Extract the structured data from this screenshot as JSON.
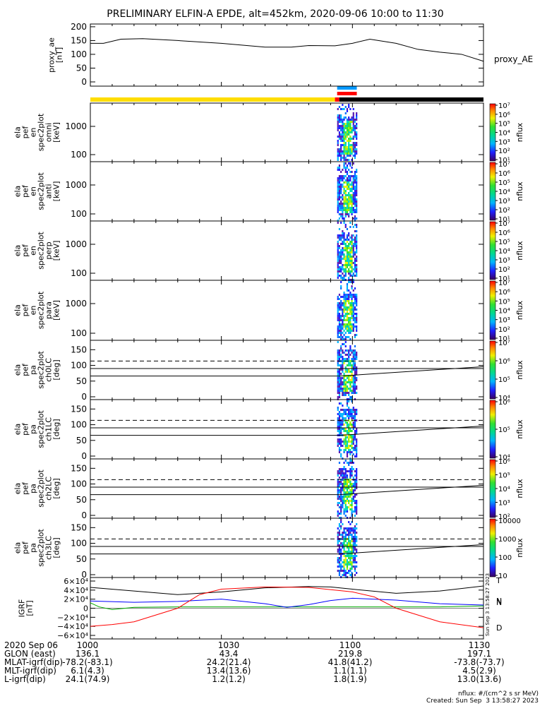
{
  "title": "PRELIMINARY ELFIN-A EPDE, alt=452km, 2020-09-06 10:00 to 11:30",
  "chart_data": [
    {
      "type": "line",
      "panel": "proxy_ae",
      "ylabel": "proxy_ae [nT]",
      "series_label": "proxy_AE",
      "y_ticks": [
        "0",
        "50",
        "100",
        "150",
        "200"
      ],
      "ylim": [
        0,
        210
      ],
      "x_min": [
        0,
        3,
        7,
        12,
        20,
        30,
        40,
        46,
        50,
        56,
        60,
        64,
        70,
        75,
        80,
        85,
        90
      ],
      "values": [
        140,
        140,
        155,
        157,
        150,
        140,
        126,
        126,
        132,
        131,
        140,
        155,
        140,
        118,
        108,
        100,
        75
      ]
    },
    {
      "type": "heatmap",
      "panel": "ela_pef_en_spec2plot_omni",
      "ylabel": "ela pef en spec2plot omni [keV]",
      "y_ticks": [
        "100",
        "1000"
      ],
      "colorbar_ticks": [
        "10¹",
        "10²",
        "10³",
        "10⁴",
        "10⁵",
        "10⁶",
        "10⁷"
      ],
      "colorbar_label": "nflux",
      "active_window_min": [
        57,
        61
      ]
    },
    {
      "type": "heatmap",
      "panel": "ela_pef_en_spec2plot_anti",
      "ylabel": "ela pef en spec2plot anti [keV]",
      "y_ticks": [
        "100",
        "1000"
      ],
      "colorbar_ticks": [
        "10¹",
        "10²",
        "10³",
        "10⁴",
        "10⁵",
        "10⁶",
        "10⁷"
      ],
      "colorbar_label": "nflux",
      "active_window_min": [
        57,
        61
      ]
    },
    {
      "type": "heatmap",
      "panel": "ela_pef_en_spec2plot_perp",
      "ylabel": "ela pef en spec2plot perp [keV]",
      "y_ticks": [
        "100",
        "1000"
      ],
      "colorbar_ticks": [
        "10¹",
        "10²",
        "10³",
        "10⁴",
        "10⁵",
        "10⁶",
        "10⁷"
      ],
      "colorbar_label": "nflux",
      "active_window_min": [
        57,
        61
      ]
    },
    {
      "type": "heatmap",
      "panel": "ela_pef_en_spec2plot_para",
      "ylabel": "ela pef en spec2plot para [keV]",
      "y_ticks": [
        "100",
        "1000"
      ],
      "colorbar_ticks": [
        "10¹",
        "10²",
        "10³",
        "10⁴",
        "10⁵",
        "10⁶",
        "10⁷"
      ],
      "colorbar_label": "nflux",
      "active_window_min": [
        57,
        61
      ]
    },
    {
      "type": "heatmap",
      "panel": "ela_pef_pa_spec2plot_ch0LC",
      "ylabel": "ela pef pa spec2plot ch0LC [deg]",
      "y_ticks": [
        "0",
        "50",
        "100",
        "150"
      ],
      "ylim": [
        0,
        180
      ],
      "colorbar_ticks": [
        "10⁴",
        "10⁵",
        "10⁶",
        "10⁷"
      ],
      "colorbar_label": "nflux",
      "loss_cone_deg": 66,
      "anti_loss_cone_deg": 114,
      "active_window_min": [
        57,
        61
      ]
    },
    {
      "type": "heatmap",
      "panel": "ela_pef_pa_spec2plot_ch1LC",
      "ylabel": "ela pef pa spec2plot ch1LC [deg]",
      "y_ticks": [
        "0",
        "50",
        "100",
        "150"
      ],
      "ylim": [
        0,
        180
      ],
      "colorbar_ticks": [
        "10⁴",
        "10⁵",
        "10⁶"
      ],
      "colorbar_label": "nflux",
      "loss_cone_deg": 66,
      "anti_loss_cone_deg": 114,
      "active_window_min": [
        57,
        61
      ]
    },
    {
      "type": "heatmap",
      "panel": "ela_pef_pa_spec2plot_ch2LC",
      "ylabel": "ela pef pa spec2plot ch2LC [deg]",
      "y_ticks": [
        "0",
        "50",
        "100",
        "150"
      ],
      "ylim": [
        0,
        180
      ],
      "colorbar_ticks": [
        "10²",
        "10³",
        "10⁴",
        "10⁵",
        "10⁶"
      ],
      "colorbar_label": "nflux",
      "loss_cone_deg": 66,
      "anti_loss_cone_deg": 114,
      "active_window_min": [
        57,
        61
      ]
    },
    {
      "type": "heatmap",
      "panel": "ela_pef_pa_spec2plot_ch3LC",
      "ylabel": "ela pef pa spec2plot ch3LC [deg]",
      "y_ticks": [
        "0",
        "50",
        "100",
        "150"
      ],
      "ylim": [
        0,
        180
      ],
      "colorbar_ticks": [
        "10",
        "100",
        "1000",
        "10000"
      ],
      "colorbar_label": "nflux",
      "loss_cone_deg": 66,
      "anti_loss_cone_deg": 114,
      "active_window_min": [
        57,
        61
      ]
    },
    {
      "type": "line",
      "panel": "IGRF",
      "ylabel": "IGRF [nT]",
      "y_ticks": [
        "−6×10⁴",
        "−4×10⁴",
        "−2×10⁴",
        "0",
        "2×10⁴",
        "4×10⁴",
        "6×10⁴"
      ],
      "ylim": [
        -60000,
        60000
      ],
      "side_text": "Sun Sep  3 13:58:27 2023",
      "series": [
        {
          "name": "T",
          "color": "#000000",
          "x_min": [
            0,
            10,
            20,
            30,
            40,
            50,
            55,
            60,
            70,
            80,
            90
          ],
          "values": [
            46000,
            38000,
            30000,
            36000,
            45000,
            48000,
            47000,
            42000,
            33000,
            38000,
            49000
          ]
        },
        {
          "name": "N",
          "color": "#00aa00",
          "x_min": [
            0,
            2,
            5,
            10,
            20,
            30,
            40,
            50,
            60,
            70,
            80,
            90
          ],
          "values": [
            12000,
            3000,
            -3000,
            2000,
            3000,
            3000,
            3000,
            3000,
            3000,
            3000,
            3000,
            5000
          ]
        },
        {
          "name": "N",
          "color": "#0000ff",
          "x_min": [
            0,
            10,
            20,
            30,
            40,
            45,
            50,
            55,
            60,
            70,
            80,
            90
          ],
          "values": [
            16000,
            13000,
            15000,
            20000,
            10000,
            2000,
            8000,
            17000,
            22000,
            18000,
            10000,
            7000
          ]
        },
        {
          "name": "D",
          "color": "#ff0000",
          "x_min": [
            0,
            5,
            10,
            20,
            25,
            30,
            40,
            50,
            60,
            65,
            70,
            80,
            90
          ],
          "values": [
            -40000,
            -36000,
            -30000,
            0,
            30000,
            42000,
            47000,
            46000,
            36000,
            25000,
            0,
            -30000,
            -43000
          ]
        }
      ]
    }
  ],
  "x_axis": {
    "ticks": [
      "1000",
      "1030",
      "1100",
      "1130"
    ],
    "range_min": [
      0,
      90
    ]
  },
  "status_bars": {
    "top_bar_segments": [
      {
        "from_min": 0,
        "to_min": 56,
        "color": "#ffdd00"
      },
      {
        "from_min": 56,
        "to_min": 57,
        "color": "#ff0000"
      },
      {
        "from_min": 57,
        "to_min": 90,
        "color": "#000000"
      }
    ],
    "science_markers": [
      {
        "from_min": 56.5,
        "to_min": 61,
        "color": "#0099ff"
      },
      {
        "from_min": 56.5,
        "to_min": 61,
        "color": "#ff0000"
      }
    ]
  },
  "footer": {
    "rows": [
      {
        "label": "2020 Sep 06",
        "values": [
          "1000",
          "1030",
          "1100",
          "1130"
        ]
      },
      {
        "label": "GLON (east)",
        "values": [
          "136.1",
          "43.4",
          "219.8",
          "197.1"
        ]
      },
      {
        "label": "MLAT-igrf(dip)",
        "values": [
          "-78.2(-83.1)",
          "24.2(21.4)",
          "41.8(41.2)",
          "-73.8(-73.7)"
        ]
      },
      {
        "label": "MLT-igrf(dip)",
        "values": [
          "6.1(4.3)",
          "13.4(13.6)",
          "1.1(1.1)",
          "4.5(2.9)"
        ]
      },
      {
        "label": "L-igrf(dip)",
        "values": [
          "24.1(74.9)",
          "1.2(1.2)",
          "1.8(1.9)",
          "13.0(13.6)"
        ]
      }
    ],
    "units_note": "nflux: #/(cm^2 s sr MeV)",
    "created": "Created: Sun Sep  3 13:58:27 2023"
  }
}
